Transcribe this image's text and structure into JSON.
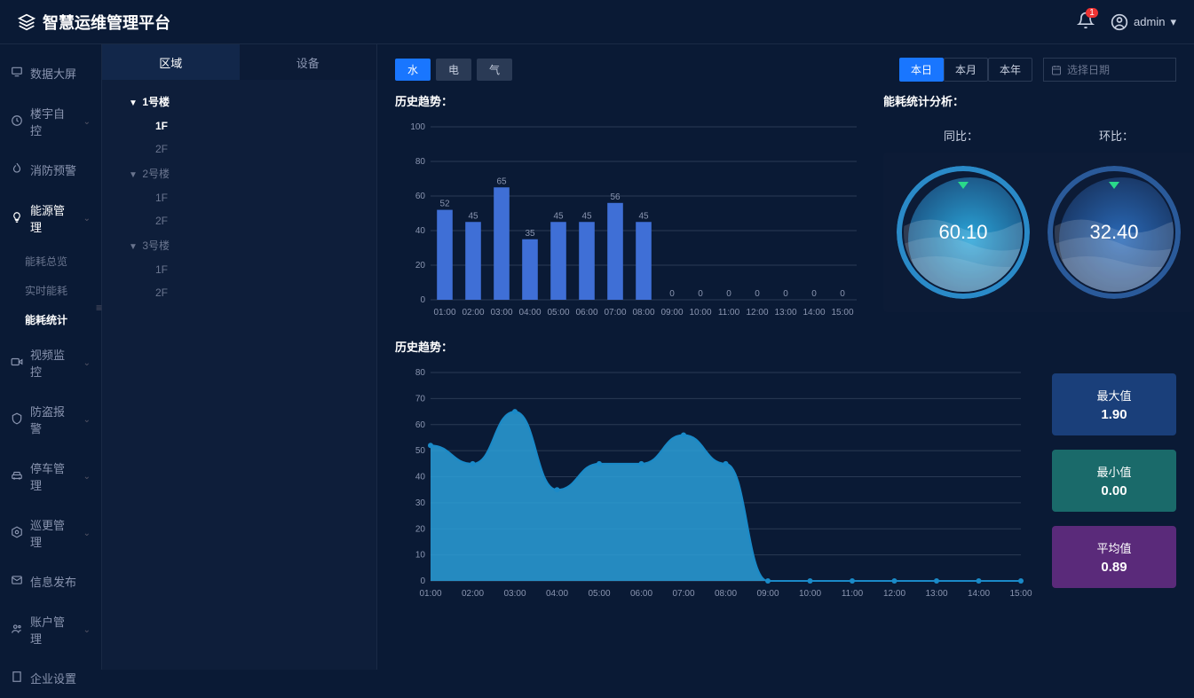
{
  "header": {
    "title": "智慧运维管理平台",
    "notification_count": "1",
    "username": "admin"
  },
  "leftnav": {
    "items": [
      {
        "icon": "screen",
        "label": "数据大屏",
        "expandable": false
      },
      {
        "icon": "clock",
        "label": "楼宇自控",
        "expandable": true
      },
      {
        "icon": "fire",
        "label": "消防预警",
        "expandable": false
      },
      {
        "icon": "bulb",
        "label": "能源管理",
        "expandable": true,
        "active": true,
        "children": [
          {
            "label": "能耗总览"
          },
          {
            "label": "实时能耗"
          },
          {
            "label": "能耗统计",
            "active": true
          }
        ]
      },
      {
        "icon": "video",
        "label": "视频监控",
        "expandable": true
      },
      {
        "icon": "alarm",
        "label": "防盗报警",
        "expandable": true
      },
      {
        "icon": "car",
        "label": "停车管理",
        "expandable": true
      },
      {
        "icon": "patrol",
        "label": "巡更管理",
        "expandable": true
      },
      {
        "icon": "mail",
        "label": "信息发布",
        "expandable": false
      },
      {
        "icon": "users",
        "label": "账户管理",
        "expandable": true
      },
      {
        "icon": "building",
        "label": "企业设置",
        "expandable": false
      }
    ]
  },
  "tree": {
    "tabs": [
      {
        "label": "区域",
        "active": true
      },
      {
        "label": "设备"
      }
    ],
    "nodes": [
      {
        "label": "1号楼",
        "lvl": 1,
        "expanded": true,
        "active": true
      },
      {
        "label": "1F",
        "lvl": 2,
        "active": true
      },
      {
        "label": "2F",
        "lvl": 2
      },
      {
        "label": "2号楼",
        "lvl": 1,
        "expanded": true,
        "dim": true
      },
      {
        "label": "1F",
        "lvl": 2
      },
      {
        "label": "2F",
        "lvl": 2
      },
      {
        "label": "3号楼",
        "lvl": 1,
        "expanded": true,
        "dim": true
      },
      {
        "label": "1F",
        "lvl": 2
      },
      {
        "label": "2F",
        "lvl": 2
      }
    ]
  },
  "filters": {
    "types": [
      {
        "label": "水",
        "active": true
      },
      {
        "label": "电"
      },
      {
        "label": "气"
      }
    ],
    "ranges": [
      {
        "label": "本日",
        "active": true
      },
      {
        "label": "本月"
      },
      {
        "label": "本年"
      }
    ],
    "date_placeholder": "选择日期"
  },
  "bar_chart": {
    "title": "历史趋势：",
    "ylim": [
      0,
      100
    ],
    "ytick_step": 20,
    "categories": [
      "01:00",
      "02:00",
      "03:00",
      "04:00",
      "05:00",
      "06:00",
      "07:00",
      "08:00",
      "09:00",
      "10:00",
      "11:00",
      "12:00",
      "13:00",
      "14:00",
      "15:00"
    ],
    "values": [
      52,
      45,
      65,
      35,
      45,
      45,
      56,
      45,
      0,
      0,
      0,
      0,
      0,
      0,
      0
    ],
    "bar_color": "#3f6fd6",
    "grid_color": "#2a3a55",
    "axis_color": "#8a95b0",
    "background": "transparent"
  },
  "gauges": {
    "title": "能耗统计分析：",
    "items": [
      {
        "label": "同比：",
        "value": "60.10",
        "border_color": "#2a8ac8",
        "fill_gradient": [
          "#1d5a8a",
          "#2aa5d9"
        ],
        "tri_color": "#2ad98a"
      },
      {
        "label": "环比：",
        "value": "32.40",
        "border_color": "#2a5a9a",
        "fill_gradient": [
          "#1a3a6a",
          "#2a6ab8"
        ],
        "tri_color": "#2ad98a"
      }
    ]
  },
  "area_chart": {
    "title": "历史趋势：",
    "ylim": [
      0,
      80
    ],
    "ytick_step": 10,
    "categories": [
      "01:00",
      "02:00",
      "03:00",
      "04:00",
      "05:00",
      "06:00",
      "07:00",
      "08:00",
      "09:00",
      "10:00",
      "11:00",
      "12:00",
      "13:00",
      "14:00",
      "15:00"
    ],
    "values": [
      52,
      45,
      65,
      35,
      45,
      45,
      56,
      45,
      0,
      0,
      0,
      0,
      0,
      0,
      0
    ],
    "line_color": "#1a8ac8",
    "fill_color": "#2a9fd8",
    "fill_opacity": 0.85,
    "marker_color": "#1a8ac8",
    "grid_color": "#2a3a55"
  },
  "stats": [
    {
      "label": "最大值",
      "value": "1.90",
      "bg": "#1a3f7a"
    },
    {
      "label": "最小值",
      "value": "0.00",
      "bg": "#1a6a6a"
    },
    {
      "label": "平均值",
      "value": "0.89",
      "bg": "#5a2a7a"
    }
  ]
}
